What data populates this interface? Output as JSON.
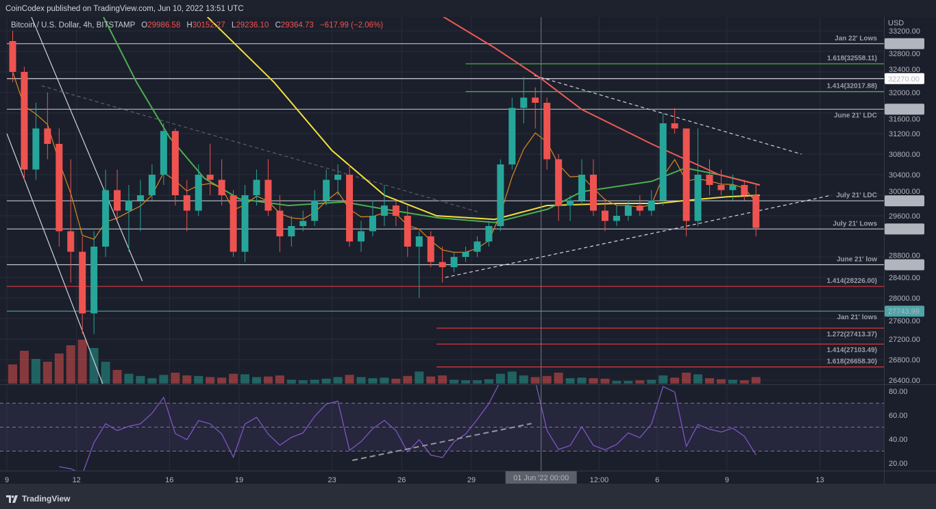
{
  "header": {
    "publisher": "CoinCodex published on TradingView.com, Jun 10, 2022 13:51 UTC",
    "symbol": "Bitcoin / U.S. Dollar, 4h, BITSTAMP",
    "open_key": "O",
    "open": "29986.58",
    "high_key": "H",
    "high": "30152.27",
    "low_key": "L",
    "low": "29236.10",
    "close_key": "C",
    "close": "29364.73",
    "change": "−617.99 (−2.06%)"
  },
  "footer": {
    "brand": "TradingView",
    "logo_icon": "tradingview-logo-icon"
  },
  "colors": {
    "background": "#1b1f2b",
    "up": "#26a69a",
    "down": "#ef5350",
    "grid": "#2a2e39",
    "ma_yellow": "#f5e13b",
    "ma_green": "#4caf50",
    "ma_red": "#f05a55",
    "ma_orange": "#e08a1e",
    "rsi": "#7e57c2",
    "fib_green": "#4caf50",
    "fib_red": "#e0383e",
    "teal": "#4fa4a8"
  },
  "chart_data": {
    "type": "candlestick",
    "title": "Bitcoin / U.S. Dollar, 4h, BITSTAMP",
    "ylabel": "USD",
    "ylim": [
      26400,
      33300
    ],
    "y_ticks": [
      "33200.00",
      "32800.00",
      "32400.00",
      "32000.00",
      "31600.00",
      "31200.00",
      "30800.00",
      "30400.00",
      "30000.00",
      "29600.00",
      "28800.00",
      "28400.00",
      "28000.00",
      "27600.00",
      "27200.00",
      "26800.00",
      "26400.00"
    ],
    "y_tick_values": [
      33200,
      32800,
      32400,
      32000,
      31600,
      31200,
      30800,
      30400,
      30000,
      29600,
      28800,
      28400,
      28000,
      27600,
      27200,
      26800,
      26400
    ],
    "x_ticks": [
      {
        "label": "9",
        "t": "2022-05-09T00:00"
      },
      {
        "label": "12",
        "t": "2022-05-12T00:00"
      },
      {
        "label": "16",
        "t": "2022-05-16T00:00"
      },
      {
        "label": "19",
        "t": "2022-05-19T00:00"
      },
      {
        "label": "23",
        "t": "2022-05-23T00:00"
      },
      {
        "label": "26",
        "t": "2022-05-26T00:00"
      },
      {
        "label": "29",
        "t": "2022-05-29T00:00"
      },
      {
        "label": "12:00",
        "t": "2022-06-03T12:00"
      },
      {
        "label": "6",
        "t": "2022-06-06T00:00"
      },
      {
        "label": "9",
        "t": "2022-06-09T00:00"
      },
      {
        "label": "13",
        "t": "2022-06-13T00:00"
      }
    ],
    "crosshair": {
      "t": "2022-06-01T00:00",
      "label": "01 Jun '22  00:00"
    },
    "grid": true,
    "candle_columns": [
      "time",
      "open",
      "high",
      "low",
      "close",
      "volume"
    ],
    "candles": [
      [
        "2022-05-09T00:00",
        33000,
        33200,
        32200,
        32400,
        35
      ],
      [
        "2022-05-09T12:00",
        32400,
        32500,
        30300,
        30500,
        60
      ],
      [
        "2022-05-10T00:00",
        30500,
        31800,
        30300,
        31300,
        45
      ],
      [
        "2022-05-10T12:00",
        31300,
        32000,
        30700,
        31000,
        40
      ],
      [
        "2022-05-11T00:00",
        31000,
        31300,
        29000,
        29300,
        55
      ],
      [
        "2022-05-11T12:00",
        29300,
        30700,
        28300,
        28900,
        70
      ],
      [
        "2022-05-12T00:00",
        28900,
        29200,
        27300,
        27700,
        80
      ],
      [
        "2022-05-12T12:00",
        27700,
        29300,
        27300,
        29000,
        65
      ],
      [
        "2022-05-13T00:00",
        29000,
        30500,
        28800,
        30100,
        40
      ],
      [
        "2022-05-13T12:00",
        30100,
        30500,
        29500,
        29700,
        25
      ],
      [
        "2022-05-14T00:00",
        29700,
        30200,
        28900,
        29900,
        18
      ],
      [
        "2022-05-14T12:00",
        29900,
        30300,
        29300,
        30000,
        14
      ],
      [
        "2022-05-15T00:00",
        30000,
        30600,
        29900,
        30400,
        10
      ],
      [
        "2022-05-15T12:00",
        30400,
        31400,
        30200,
        31250,
        16
      ],
      [
        "2022-05-16T00:00",
        31250,
        31300,
        29800,
        30000,
        20
      ],
      [
        "2022-05-16T12:00",
        30000,
        30300,
        29300,
        29700,
        15
      ],
      [
        "2022-05-17T00:00",
        29700,
        30600,
        29600,
        30400,
        14
      ],
      [
        "2022-05-17T12:00",
        30400,
        31000,
        30000,
        30300,
        12
      ],
      [
        "2022-05-18T00:00",
        30300,
        30700,
        29800,
        30000,
        11
      ],
      [
        "2022-05-18T12:00",
        30000,
        30100,
        28800,
        28900,
        18
      ],
      [
        "2022-05-19T00:00",
        28900,
        30200,
        28700,
        30000,
        17
      ],
      [
        "2022-05-19T12:00",
        30000,
        30500,
        29800,
        30300,
        12
      ],
      [
        "2022-05-20T00:00",
        30300,
        30700,
        29600,
        29700,
        13
      ],
      [
        "2022-05-20T12:00",
        29700,
        30000,
        28900,
        29200,
        15
      ],
      [
        "2022-05-21T00:00",
        29200,
        29600,
        29000,
        29400,
        7
      ],
      [
        "2022-05-21T12:00",
        29400,
        29700,
        29300,
        29500,
        6
      ],
      [
        "2022-05-22T00:00",
        29500,
        30100,
        29400,
        29900,
        7
      ],
      [
        "2022-05-22T12:00",
        29900,
        30500,
        29800,
        30300,
        9
      ],
      [
        "2022-05-23T00:00",
        30300,
        30600,
        30000,
        30400,
        12
      ],
      [
        "2022-05-23T12:00",
        30400,
        30600,
        29000,
        29100,
        16
      ],
      [
        "2022-05-24T00:00",
        29100,
        29500,
        28900,
        29300,
        12
      ],
      [
        "2022-05-24T12:00",
        29300,
        29900,
        29200,
        29600,
        10
      ],
      [
        "2022-05-25T00:00",
        29600,
        30200,
        29400,
        29800,
        11
      ],
      [
        "2022-05-25T12:00",
        29800,
        29900,
        29400,
        29600,
        9
      ],
      [
        "2022-05-26T00:00",
        29600,
        29800,
        28800,
        29000,
        14
      ],
      [
        "2022-05-26T12:00",
        29000,
        29300,
        28000,
        29200,
        22
      ],
      [
        "2022-05-27T00:00",
        29200,
        29300,
        28600,
        28700,
        13
      ],
      [
        "2022-05-27T12:00",
        28700,
        29000,
        28300,
        28600,
        15
      ],
      [
        "2022-05-28T00:00",
        28600,
        28900,
        28500,
        28800,
        7
      ],
      [
        "2022-05-28T12:00",
        28800,
        29000,
        28700,
        28900,
        6
      ],
      [
        "2022-05-29T00:00",
        28900,
        29200,
        28800,
        29100,
        6
      ],
      [
        "2022-05-29T12:00",
        29100,
        29500,
        29000,
        29400,
        8
      ],
      [
        "2022-05-30T00:00",
        29400,
        30700,
        29300,
        30600,
        18
      ],
      [
        "2022-05-30T12:00",
        30600,
        31900,
        30500,
        31700,
        22
      ],
      [
        "2022-05-31T00:00",
        31700,
        32300,
        31400,
        31900,
        15
      ],
      [
        "2022-05-31T12:00",
        31900,
        32100,
        31300,
        31800,
        12
      ],
      [
        "2022-06-01T00:00",
        31800,
        31900,
        30500,
        30700,
        14
      ],
      [
        "2022-06-01T12:00",
        30700,
        30800,
        29500,
        29800,
        20
      ],
      [
        "2022-06-02T00:00",
        29800,
        30000,
        29500,
        29900,
        10
      ],
      [
        "2022-06-02T12:00",
        29900,
        30700,
        29800,
        30400,
        11
      ],
      [
        "2022-06-03T00:00",
        30400,
        30700,
        29600,
        29700,
        10
      ],
      [
        "2022-06-03T12:00",
        29700,
        29900,
        29300,
        29500,
        9
      ],
      [
        "2022-06-04T00:00",
        29500,
        29800,
        29400,
        29600,
        5
      ],
      [
        "2022-06-04T12:00",
        29600,
        29900,
        29500,
        29800,
        5
      ],
      [
        "2022-06-05T00:00",
        29800,
        30000,
        29600,
        29700,
        6
      ],
      [
        "2022-06-05T12:00",
        29700,
        30100,
        29600,
        29900,
        7
      ],
      [
        "2022-06-06T00:00",
        29900,
        31600,
        29800,
        31400,
        15
      ],
      [
        "2022-06-06T12:00",
        31400,
        31700,
        31200,
        31300,
        11
      ],
      [
        "2022-06-07T00:00",
        31300,
        31300,
        29200,
        29500,
        20
      ],
      [
        "2022-06-07T12:00",
        29500,
        31300,
        29400,
        30400,
        17
      ],
      [
        "2022-06-08T00:00",
        30400,
        30700,
        30000,
        30200,
        10
      ],
      [
        "2022-06-08T12:00",
        30200,
        30500,
        30000,
        30100,
        8
      ],
      [
        "2022-06-09T00:00",
        30100,
        30400,
        29900,
        30200,
        7
      ],
      [
        "2022-06-09T12:00",
        30200,
        30300,
        29900,
        30000,
        6
      ],
      [
        "2022-06-10T00:00",
        30000,
        30200,
        29200,
        29364.73,
        12
      ]
    ],
    "moving_averages": [
      {
        "color": "#f5e13b",
        "points": [
          [
            "2022-05-17T12:00",
            33530
          ],
          [
            "2022-05-20T12:00",
            32200
          ],
          [
            "2022-05-23T00:00",
            30870
          ],
          [
            "2022-05-25T06:00",
            30000
          ],
          [
            "2022-05-27T12:00",
            29600
          ],
          [
            "2022-05-30T00:00",
            29530
          ],
          [
            "2022-06-01T06:00",
            29800
          ],
          [
            "2022-06-04T06:00",
            29840
          ],
          [
            "2022-06-06T00:00",
            29840
          ],
          [
            "2022-06-07T06:00",
            29900
          ],
          [
            "2022-06-09T00:00",
            29970
          ],
          [
            "2022-06-10T10:00",
            30000
          ]
        ]
      },
      {
        "color": "#4caf50",
        "points": [
          [
            "2022-05-13T03:00",
            33500
          ],
          [
            "2022-05-14T14:00",
            32200
          ],
          [
            "2022-05-16T00:00",
            31130
          ],
          [
            "2022-05-17T12:00",
            30330
          ],
          [
            "2022-05-19T00:00",
            29930
          ],
          [
            "2022-05-21T03:00",
            29800
          ],
          [
            "2022-05-23T12:00",
            29870
          ],
          [
            "2022-05-25T06:00",
            29730
          ],
          [
            "2022-05-27T14:00",
            29560
          ],
          [
            "2022-05-30T00:00",
            29470
          ],
          [
            "2022-06-01T07:00",
            29730
          ],
          [
            "2022-06-02T18:00",
            30070
          ],
          [
            "2022-06-05T18:00",
            30270
          ],
          [
            "2022-06-07T05:00",
            30530
          ],
          [
            "2022-06-08T16:00",
            30400
          ],
          [
            "2022-06-10T10:00",
            30200
          ]
        ]
      },
      {
        "color": "#f05a55",
        "points": [
          [
            "2022-05-27T14:00",
            33530
          ],
          [
            "2022-05-30T00:00",
            32870
          ],
          [
            "2022-06-01T00:00",
            32270
          ],
          [
            "2022-06-02T18:00",
            31670
          ],
          [
            "2022-06-05T18:00",
            31000
          ],
          [
            "2022-06-08T16:00",
            30400
          ],
          [
            "2022-06-10T10:00",
            30200
          ]
        ]
      }
    ],
    "levels": [
      {
        "price": 32950,
        "label": "Jan 22' Lows",
        "axis_label": "32950.00",
        "line": "#b2b5be",
        "box": "#b2b5be",
        "from": "2022-05-09T00:00"
      },
      {
        "price": 32558.11,
        "label": "1.618(32558.11)",
        "line": "#4caf50",
        "text": "#4caf50",
        "from": "2022-05-28T18:00"
      },
      {
        "price": 32270,
        "label": "",
        "axis_label": "32270.00",
        "line": "#d1d4dc",
        "box": "#ffffff",
        "from": "2022-05-09T00:00"
      },
      {
        "price": 32017.88,
        "label": "1.414(32017.88)",
        "line": "#4caf50",
        "text": "#4caf50",
        "from": "2022-05-28T18:00"
      },
      {
        "price": 31674.39,
        "label": "June 21' LDC",
        "axis_label": "31674.39",
        "line": "#b2b5be",
        "box": "#b2b5be",
        "from": "2022-05-09T00:00",
        "below": true
      },
      {
        "price": 29891.69,
        "label": "July 21' LDC",
        "axis_label": "29891.69",
        "line": "#b2b5be",
        "box": "#b2b5be",
        "from": "2022-05-09T00:00"
      },
      {
        "price": 29343.1,
        "label": "July 21' Lows",
        "axis_label": "29343.10",
        "line": "#b2b5be",
        "box": "#b2b5be",
        "from": "2022-05-09T00:00"
      },
      {
        "price": 28647.2,
        "label": "June 21' low",
        "axis_label": "28647.20",
        "line": "#d1d4dc",
        "box": "#b2b5be",
        "from": "2022-05-09T00:00"
      },
      {
        "price": 28226.0,
        "label": "1.414(28226.00)",
        "line": "#e0383e",
        "text": "#e0383e",
        "from": "2022-05-09T00:00"
      },
      {
        "price": 27743.99,
        "label": "Jan 21' lows",
        "axis_label": "27743.99",
        "line": "#4fa4a8",
        "box": "#4fa4a8",
        "from": "2022-05-09T00:00",
        "below": true
      },
      {
        "price": 27413.37,
        "label": "1.272(27413.37)",
        "line": "#e0383e",
        "text": "#e0383e",
        "from": "2022-05-27T12:00"
      },
      {
        "price": 27103.49,
        "label": "1.414(27103.49)",
        "line": "#e0383e",
        "text": "#e0383e",
        "from": "2022-05-27T12:00"
      },
      {
        "price": 26658.3,
        "label": "1.618(26658.30)",
        "line": "#e0383e",
        "text": "#e0383e",
        "from": "2022-05-27T12:00"
      }
    ],
    "trendlines": [
      {
        "from": [
          "2022-05-10T00:00",
          33530
        ],
        "to": [
          "2022-05-14T20:00",
          28330
        ],
        "color": "#d1d4dc",
        "dashed": false
      },
      {
        "from": [
          "2022-05-09T00:00",
          31200
        ],
        "to": [
          "2022-05-13T03:00",
          26330
        ],
        "color": "#d1d4dc",
        "dashed": false
      },
      {
        "from": [
          "2022-05-10T12:00",
          32130
        ],
        "to": [
          "2022-05-29T08:00",
          29670
        ],
        "color": "#5d606b",
        "dashed": true
      },
      {
        "from": [
          "2022-05-31T17:00",
          32330
        ],
        "to": [
          "2022-06-12T05:00",
          30800
        ],
        "color": "#d1d4dc",
        "dashed": true
      },
      {
        "from": [
          "2022-05-27T21:00",
          28400
        ],
        "to": [
          "2022-06-13T12:00",
          30000
        ],
        "color": "#d1d4dc",
        "dashed": true
      }
    ],
    "rsi": {
      "y_ticks": [
        "80.00",
        "60.00",
        "40.00",
        "20.00"
      ],
      "y_tick_values": [
        80,
        60,
        40,
        20
      ],
      "bands": [
        70,
        50,
        30
      ],
      "trendline": {
        "from": [
          "2022-05-23T21:00",
          22.3
        ],
        "to": [
          "2022-05-31T14:00",
          53
        ]
      }
    }
  }
}
